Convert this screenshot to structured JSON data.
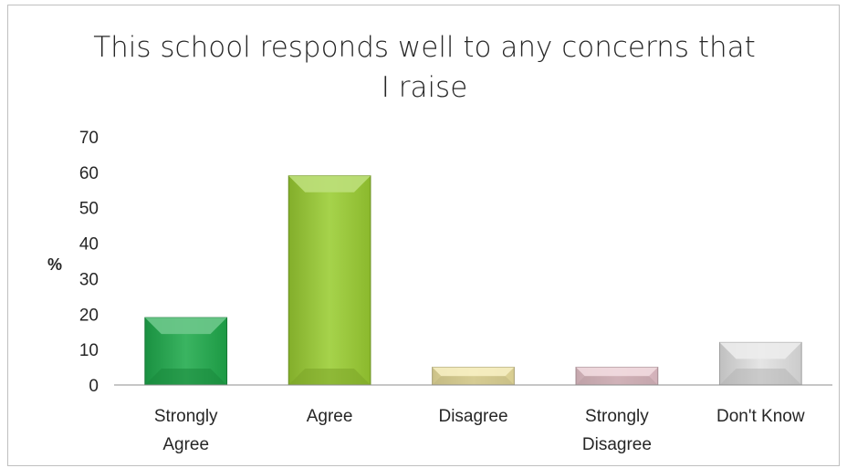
{
  "chart_data": {
    "type": "bar",
    "title": "This school responds well to any concerns that I raise",
    "title_lines": [
      "This school responds well to any concerns that",
      "I raise"
    ],
    "xlabel": "",
    "ylabel": "%",
    "ylim": [
      0,
      70
    ],
    "yticks": [
      0,
      10,
      20,
      30,
      40,
      50,
      60,
      70
    ],
    "categories": [
      "Strongly Agree",
      "Agree",
      "Disagree",
      "Strongly Disagree",
      "Don't Know"
    ],
    "category_lines": [
      [
        "Strongly",
        "Agree"
      ],
      [
        "Agree"
      ],
      [
        "Disagree"
      ],
      [
        "Strongly",
        "Disagree"
      ],
      [
        "Don't Know"
      ]
    ],
    "values": [
      19,
      59,
      5,
      5,
      12
    ],
    "colors": [
      "#1faa4c",
      "#9acd32",
      "#efe3a0",
      "#e8c4cc",
      "#e2e2e2"
    ],
    "grid": false,
    "legend": "none"
  }
}
